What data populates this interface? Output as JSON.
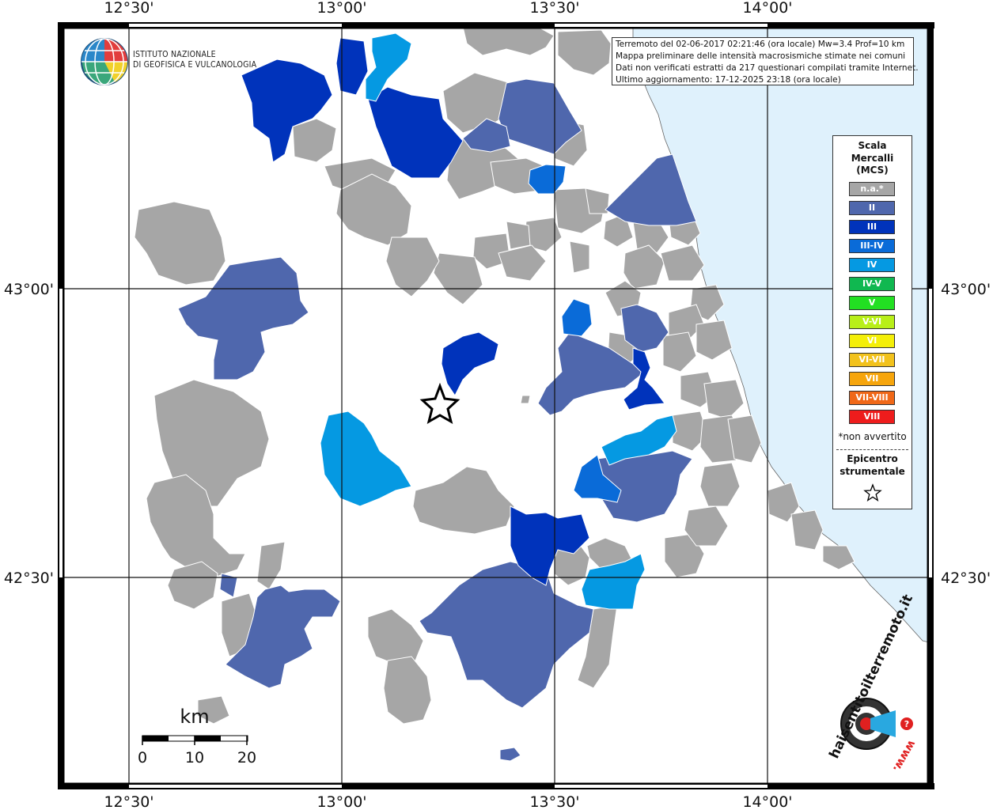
{
  "title": {
    "line1": "Terremoto del 02-06-2017 02:21:46 (ora locale) Mw=3.4 Prof=10 km",
    "line2": "Mappa preliminare delle intensità macrosismiche stimate nei comuni",
    "line3": "Dati non verificati estratti da 217 questionari compilati tramite Internet.",
    "line4": "Ultimo aggiornamento: 17-12-2025 23:18 (ora locale)"
  },
  "institute": {
    "line1": "ISTITUTO NAZIONALE",
    "line2": "DI GEOFISICA E VULCANOLOGIA"
  },
  "axes": {
    "lon_labels": [
      "12°30'",
      "13°00'",
      "13°30'",
      "14°00'"
    ],
    "lat_labels": [
      "43°00'",
      "42°30'"
    ]
  },
  "legend": {
    "title_line1": "Scala",
    "title_line2": "Mercalli",
    "title_line3": "(MCS)",
    "items": [
      {
        "label": "n.a.*",
        "color": "#a6a6a6"
      },
      {
        "label": "II",
        "color": "#4f67ad"
      },
      {
        "label": "III",
        "color": "#0033bb"
      },
      {
        "label": "III-IV",
        "color": "#0a6bd8"
      },
      {
        "label": "IV",
        "color": "#0599e2"
      },
      {
        "label": "IV-V",
        "color": "#10b850"
      },
      {
        "label": "V",
        "color": "#22e022"
      },
      {
        "label": "V-VI",
        "color": "#b8ef18"
      },
      {
        "label": "VI",
        "color": "#f4ef08"
      },
      {
        "label": "VI-VII",
        "color": "#f2c21c"
      },
      {
        "label": "VII",
        "color": "#f6a50c"
      },
      {
        "label": "VII-VIII",
        "color": "#f06818"
      },
      {
        "label": "VIII",
        "color": "#ee1c1c"
      }
    ],
    "note": "*non avvertito",
    "epicenter_line1": "Epicentro",
    "epicenter_line2": "strumentale",
    "epicenter_icon": "star-outline-icon"
  },
  "scale_bar": {
    "unit": "km",
    "ticks": [
      "0",
      "10",
      "20"
    ]
  },
  "watermark": {
    "text": "haisentitoilterremoto.it",
    "url_text": "www.",
    "icon": "seismograph-logo-icon"
  },
  "colors": {
    "sea": "#dff1fc",
    "na": "#a6a6a6",
    "ii": "#4f67ad",
    "iii": "#0033bb",
    "iii_iv": "#0a6bd8",
    "iv": "#0599e2"
  }
}
